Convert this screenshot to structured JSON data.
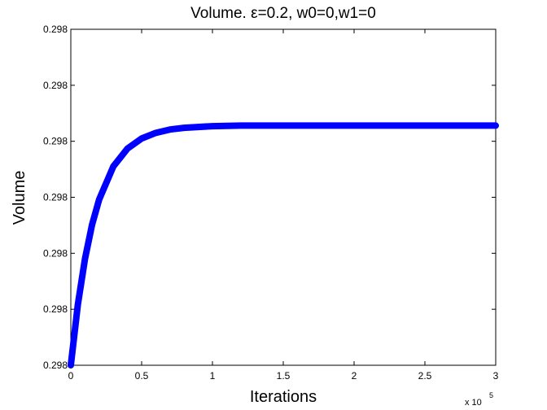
{
  "chart_data": {
    "type": "line",
    "title": "Volume.   ε=0.2, w0=0,w1=0",
    "x_label": "Iterations",
    "y_label": "Volume",
    "x_multiplier": "x 10",
    "x_multiplier_exponent": "5",
    "x": [
      0,
      5000,
      10000,
      15000,
      20000,
      30000,
      40000,
      50000,
      60000,
      70000,
      80000,
      100000,
      120000,
      150000,
      200000,
      250000,
      300000
    ],
    "series": [
      {
        "name": "Volume",
        "color": "#0000ff",
        "values": [
          0.298,
          0.2980109,
          0.298019,
          0.2980251,
          0.2980296,
          0.2980355,
          0.2980387,
          0.2980405,
          0.2980415,
          0.2980421,
          0.2980424,
          0.2980427,
          0.2980428,
          0.2980428,
          0.2980428,
          0.2980428,
          0.2980428
        ]
      }
    ],
    "xlim": [
      0,
      300000
    ],
    "xticks": [
      0,
      {
        "value": 50000,
        "label": "0.5"
      },
      {
        "value": 100000,
        "label": "1"
      },
      {
        "value": 150000,
        "label": "1.5"
      },
      {
        "value": 200000,
        "label": "2"
      },
      {
        "value": 250000,
        "label": "2.5"
      },
      {
        "value": 300000,
        "label": "3"
      }
    ],
    "ylim": [
      0.298,
      0.29806
    ],
    "yticks": [
      {
        "value": 0.298,
        "label": "0.298"
      },
      {
        "value": 0.29801,
        "label": "0.298"
      },
      {
        "value": 0.29802,
        "label": "0.298"
      },
      {
        "value": 0.29803,
        "label": "0.298"
      },
      {
        "value": 0.29804,
        "label": "0.298"
      },
      {
        "value": 0.29805,
        "label": "0.298"
      },
      {
        "value": 0.29806,
        "label": "0.298"
      }
    ],
    "grid": false
  }
}
